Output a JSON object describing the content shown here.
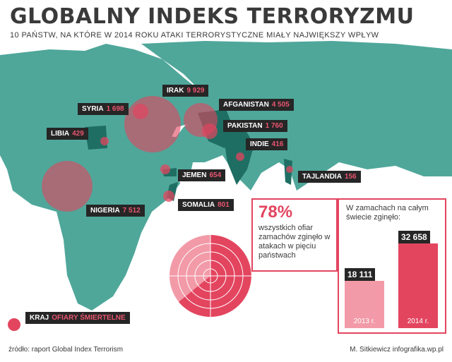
{
  "header": {
    "title": "GLOBALNY INDEKS TERRORYZMU",
    "subtitle": "10 PAŃSTW, NA KTÓRE W 2014 ROKU ATAKI TERRORYSTYCZNE MIAŁY NAJWIĘKSZY WPŁYW"
  },
  "countries": [
    {
      "name": "IRAK",
      "value": "9 929"
    },
    {
      "name": "SYRIA",
      "value": "1 698"
    },
    {
      "name": "AFGANISTAN",
      "value": "4 505"
    },
    {
      "name": "PAKISTAN",
      "value": "1 760"
    },
    {
      "name": "LIBIA",
      "value": "429"
    },
    {
      "name": "INDIE",
      "value": "416"
    },
    {
      "name": "JEMEN",
      "value": "654"
    },
    {
      "name": "TAJLANDIA",
      "value": "156"
    },
    {
      "name": "SOMALIA",
      "value": "801"
    },
    {
      "name": "NIGERIA",
      "value": "7 512"
    }
  ],
  "stat": {
    "percent": "78%",
    "text": "wszystkich ofiar zamachów zginęło w atakach w pięciu państwach"
  },
  "bars": {
    "text": "W zamachach na całym świecie zginęło:",
    "items": [
      {
        "year": "2013 r.",
        "value": "18 111",
        "amount": 18111
      },
      {
        "year": "2014 r.",
        "value": "32 658",
        "amount": 32658
      }
    ]
  },
  "legend": {
    "left": "KRAJ",
    "right": "OFIARY ŚMIERTELNE"
  },
  "footer": {
    "source": "źródło: raport Global Index Terrorism",
    "author": "M. Sitkiewicz infografika.wp.pl"
  },
  "colors": {
    "land": "#4fa79a",
    "highlight": "#1f6e63",
    "bubble": "#e3455f",
    "dark": "#262626",
    "bar2013": "#f29aa7",
    "bar2014": "#e3455f"
  }
}
